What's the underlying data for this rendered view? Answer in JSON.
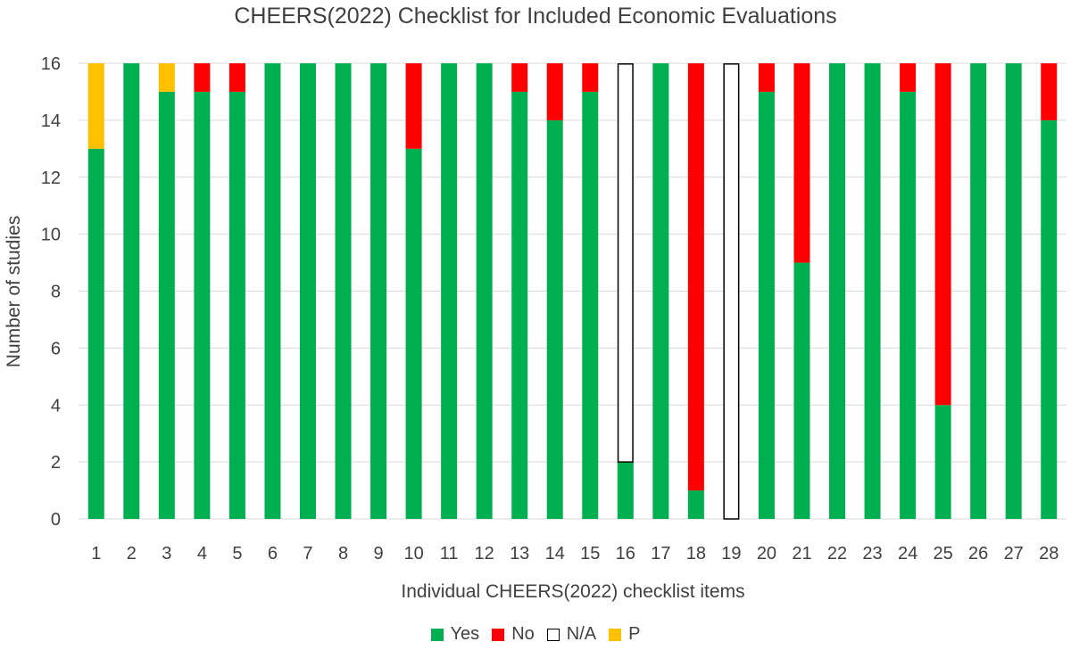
{
  "chart_data": {
    "type": "bar",
    "stacked": true,
    "title": "CHEERS(2022) Checklist for Included Economic Evaluations",
    "xlabel": "Individual CHEERS(2022) checklist items",
    "ylabel": "Number of studies",
    "ylim": [
      0,
      16
    ],
    "yticks": [
      "0",
      "2",
      "4",
      "6",
      "8",
      "10",
      "12",
      "14",
      "16"
    ],
    "categories": [
      "1",
      "2",
      "3",
      "4",
      "5",
      "6",
      "7",
      "8",
      "9",
      "10",
      "11",
      "12",
      "13",
      "14",
      "15",
      "16",
      "17",
      "18",
      "19",
      "20",
      "21",
      "22",
      "23",
      "24",
      "25",
      "26",
      "27",
      "28"
    ],
    "grid": true,
    "legend_position": "bottom",
    "series": [
      {
        "name": "Yes",
        "color": "#00b050",
        "values": [
          13,
          16,
          15,
          15,
          15,
          16,
          16,
          16,
          16,
          13,
          16,
          16,
          15,
          14,
          15,
          2,
          16,
          1,
          0,
          15,
          9,
          16,
          16,
          15,
          4,
          16,
          16,
          14
        ]
      },
      {
        "name": "No",
        "color": "#ff0000",
        "values": [
          0,
          0,
          0,
          1,
          1,
          0,
          0,
          0,
          0,
          3,
          0,
          0,
          1,
          2,
          1,
          0,
          0,
          15,
          0,
          1,
          7,
          0,
          0,
          1,
          12,
          0,
          0,
          2
        ]
      },
      {
        "name": "N/A",
        "color": "#ffffff",
        "outline": "#000000",
        "values": [
          0,
          0,
          0,
          0,
          0,
          0,
          0,
          0,
          0,
          0,
          0,
          0,
          0,
          0,
          0,
          14,
          0,
          0,
          16,
          0,
          0,
          0,
          0,
          0,
          0,
          0,
          0,
          0
        ]
      },
      {
        "name": "P",
        "color": "#ffc000",
        "values": [
          3,
          0,
          1,
          0,
          0,
          0,
          0,
          0,
          0,
          0,
          0,
          0,
          0,
          0,
          0,
          0,
          0,
          0,
          0,
          0,
          0,
          0,
          0,
          0,
          0,
          0,
          0,
          0
        ]
      }
    ]
  }
}
